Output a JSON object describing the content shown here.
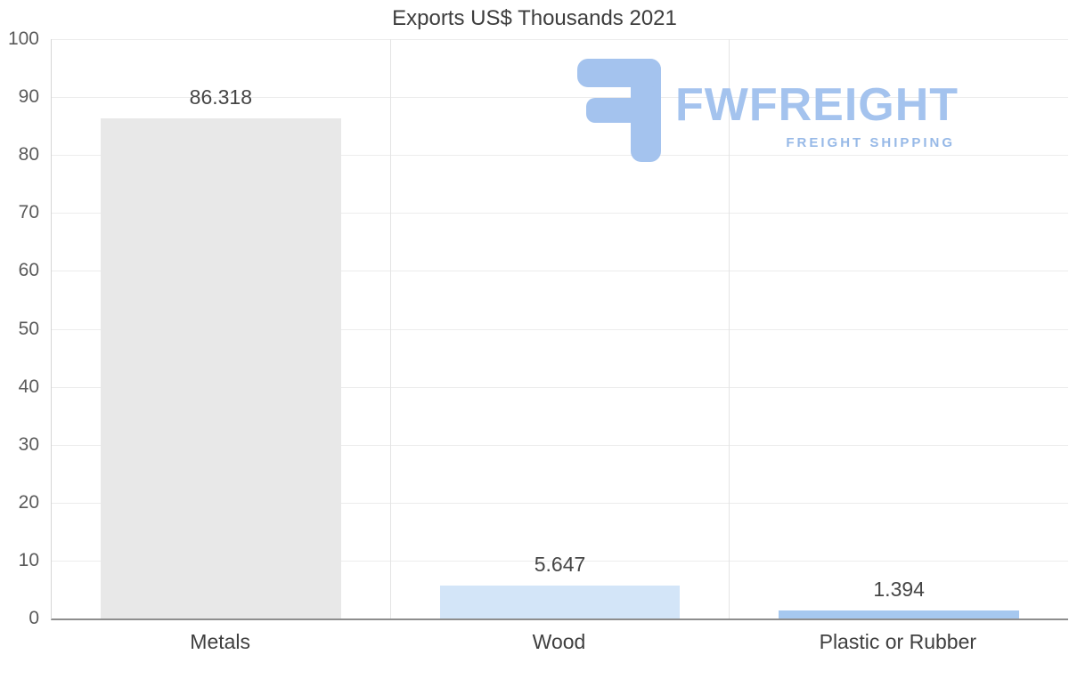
{
  "title": "Exports US$ Thousands 2021",
  "logo": {
    "brand": "FWFREIGHT",
    "tagline": "FREIGHT SHIPPING",
    "color": "#a4c3ee"
  },
  "chart_data": {
    "type": "bar",
    "title": "Exports US$ Thousands 2021",
    "categories": [
      "Metals",
      "Wood",
      "Plastic or Rubber"
    ],
    "values": [
      86.318,
      5.647,
      1.394
    ],
    "value_labels": [
      "86.318",
      "5.647",
      "1.394"
    ],
    "bar_colors": [
      "#e8e8e8",
      "#d3e5f8",
      "#a6c8ef"
    ],
    "xlabel": "",
    "ylabel": "",
    "ylim": [
      0,
      100
    ],
    "yticks": [
      0,
      10,
      20,
      30,
      40,
      50,
      60,
      70,
      80,
      90,
      100
    ],
    "grid": true,
    "legend": false
  }
}
